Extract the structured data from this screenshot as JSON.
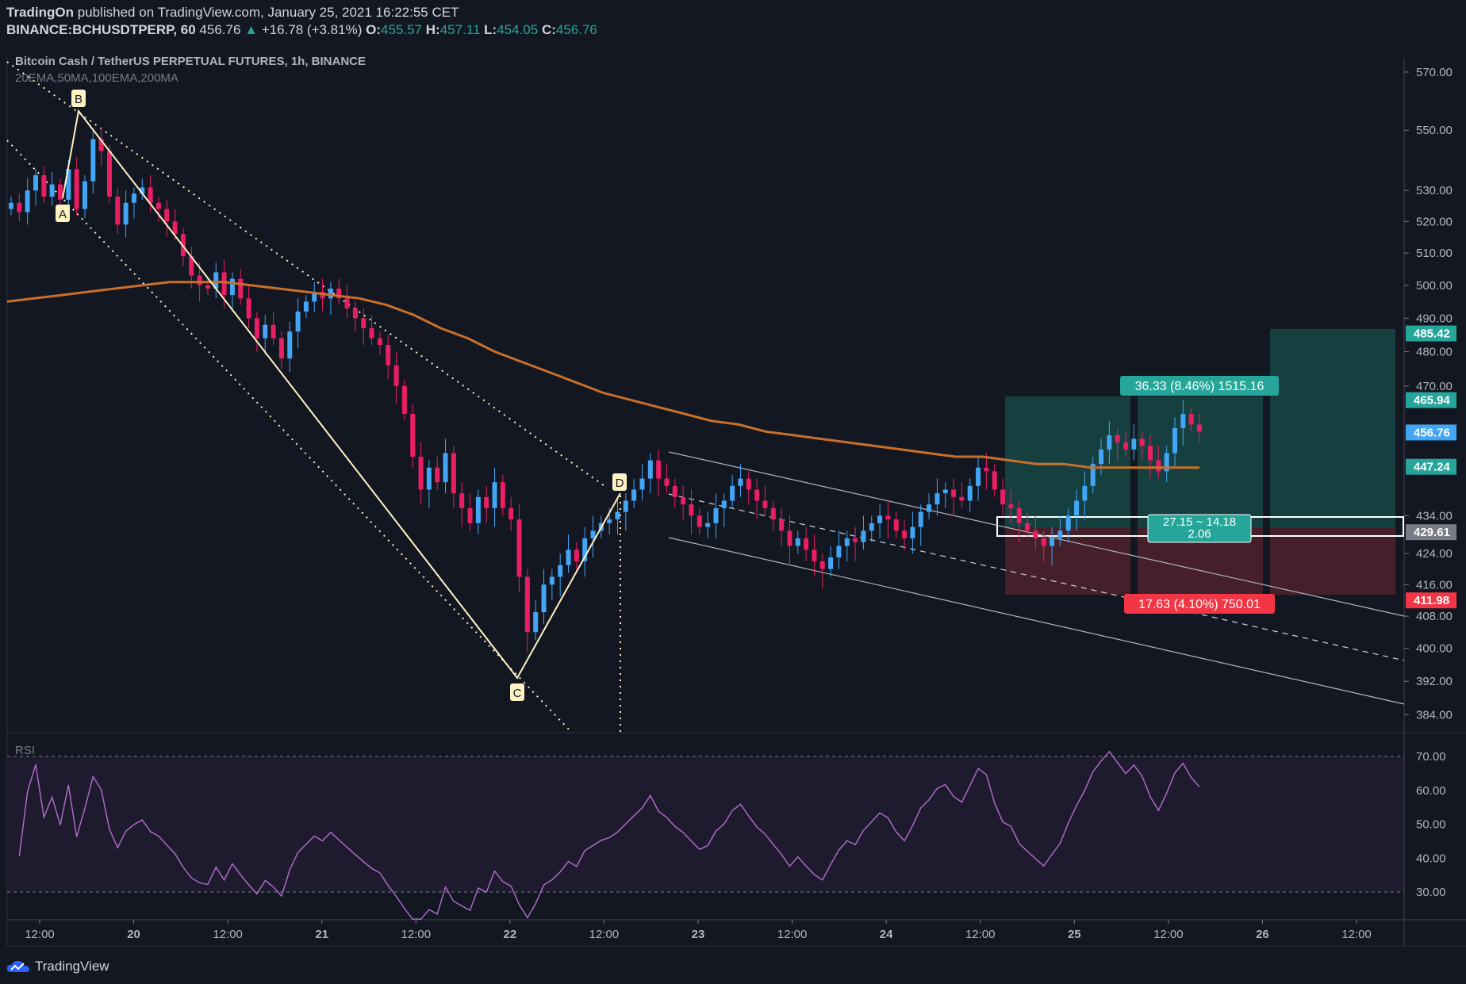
{
  "header": {
    "author": "TradingOn",
    "published": "published on TradingView.com, January 25, 2021 16:22:55 CET",
    "symbol": "BINANCE:BCHUSDTPERP, 60",
    "last": "456.76",
    "change": "+16.78 (+3.81%)",
    "o_label": "O:",
    "o": "455.57",
    "h_label": "H:",
    "h": "457.11",
    "l_label": "L:",
    "l": "454.05",
    "c_label": "C:",
    "c": "456.76"
  },
  "chart_title": "Bitcoin Cash / TetherUS PERPETUAL FUTURES, 1h, BINANCE",
  "indicators_label": "20EMA,50MA,100EMA,200MA",
  "rsi_label": "RSI",
  "footer": "TradingView",
  "colors": {
    "background": "#131722",
    "up": "#42a5f5",
    "down": "#e91e63",
    "ma": "#c9702a",
    "rsi_line": "#b46ed0",
    "rsi_band": "#231d35",
    "pattern": "#fff3c4",
    "target_zone": "#16403f",
    "stop_zone": "#45202a"
  },
  "pattern_points": [
    "A",
    "B",
    "C",
    "D"
  ],
  "position_labels": {
    "target": "36.33 (8.46%) 1515.16",
    "stop": "17.63 (4.10%) 750.01",
    "ratio_top": "27.15 ~ 14.18",
    "ratio_bottom": "2.06"
  },
  "price_tags": [
    {
      "text": "485.42",
      "color": "#26a69a"
    },
    {
      "text": "465.94",
      "color": "#26a69a"
    },
    {
      "text": "456.76",
      "color": "#42a5f5"
    },
    {
      "text": "447.24",
      "color": "#26a69a"
    },
    {
      "text": "429.61",
      "color": "#787b86"
    },
    {
      "text": "411.98",
      "color": "#f23645"
    }
  ],
  "chart_data": {
    "type": "candlestick",
    "title": "Bitcoin Cash / TetherUS PERPETUAL FUTURES, 1h, BINANCE",
    "y_scale": "log",
    "ylim": [
      380,
      575
    ],
    "y_ticks": [
      "570.00",
      "550.00",
      "530.00",
      "520.00",
      "510.00",
      "500.00",
      "490.00",
      "480.00",
      "470.00",
      "434.00",
      "424.00",
      "416.00",
      "408.00",
      "400.00",
      "392.00",
      "384.00"
    ],
    "x_ticks": [
      "12:00",
      "20",
      "12:00",
      "21",
      "12:00",
      "22",
      "12:00",
      "23",
      "12:00",
      "24",
      "12:00",
      "25",
      "12:00",
      "26",
      "12:00"
    ],
    "ohlc_closes": [
      526,
      523,
      530,
      535,
      528,
      532,
      527,
      537,
      524,
      533,
      547,
      543,
      528,
      519,
      526,
      529,
      531,
      526,
      524,
      520,
      516,
      509,
      503,
      500,
      499,
      504,
      497,
      502,
      496,
      490,
      484,
      488,
      484,
      478,
      486,
      492,
      495,
      498,
      496,
      499,
      496,
      493,
      490,
      487,
      484,
      482,
      476,
      470,
      462,
      450,
      441,
      447,
      443,
      451,
      440,
      436,
      432,
      439,
      436,
      443,
      436,
      433,
      418,
      404,
      409,
      416,
      418,
      421,
      425,
      422,
      428,
      430,
      432,
      433,
      435,
      438,
      441,
      444,
      449,
      444,
      442,
      439,
      437,
      434,
      431,
      432,
      436,
      438,
      442,
      444,
      441,
      438,
      436,
      433,
      430,
      426,
      428,
      425,
      422,
      420,
      423,
      426,
      428,
      427,
      430,
      432,
      434,
      433,
      430,
      428,
      431,
      435,
      437,
      440,
      441,
      439,
      438,
      442,
      447,
      446,
      441,
      437,
      436,
      432,
      430,
      428,
      426,
      428,
      430,
      434,
      438,
      442,
      448,
      452,
      456,
      454,
      452,
      455,
      453,
      449,
      446,
      451,
      458,
      462,
      459,
      457
    ],
    "ohlc_note": "close-price path approximation of hourly candles",
    "ma_200": [
      495,
      496,
      497,
      498,
      499,
      500,
      501,
      501,
      501,
      500,
      499,
      498,
      497,
      496,
      494,
      491,
      487,
      484,
      480,
      477,
      474,
      471,
      468,
      466,
      464,
      462,
      460,
      459,
      457,
      456,
      455,
      454,
      453,
      452,
      451,
      450,
      450,
      449,
      448,
      448,
      447,
      447,
      447,
      447,
      447
    ],
    "rsi": {
      "ylim": [
        25,
        75
      ],
      "levels": [
        70,
        30
      ],
      "ticks": [
        "70.00",
        "60.00",
        "50.00",
        "40.00",
        "30.00"
      ]
    }
  }
}
